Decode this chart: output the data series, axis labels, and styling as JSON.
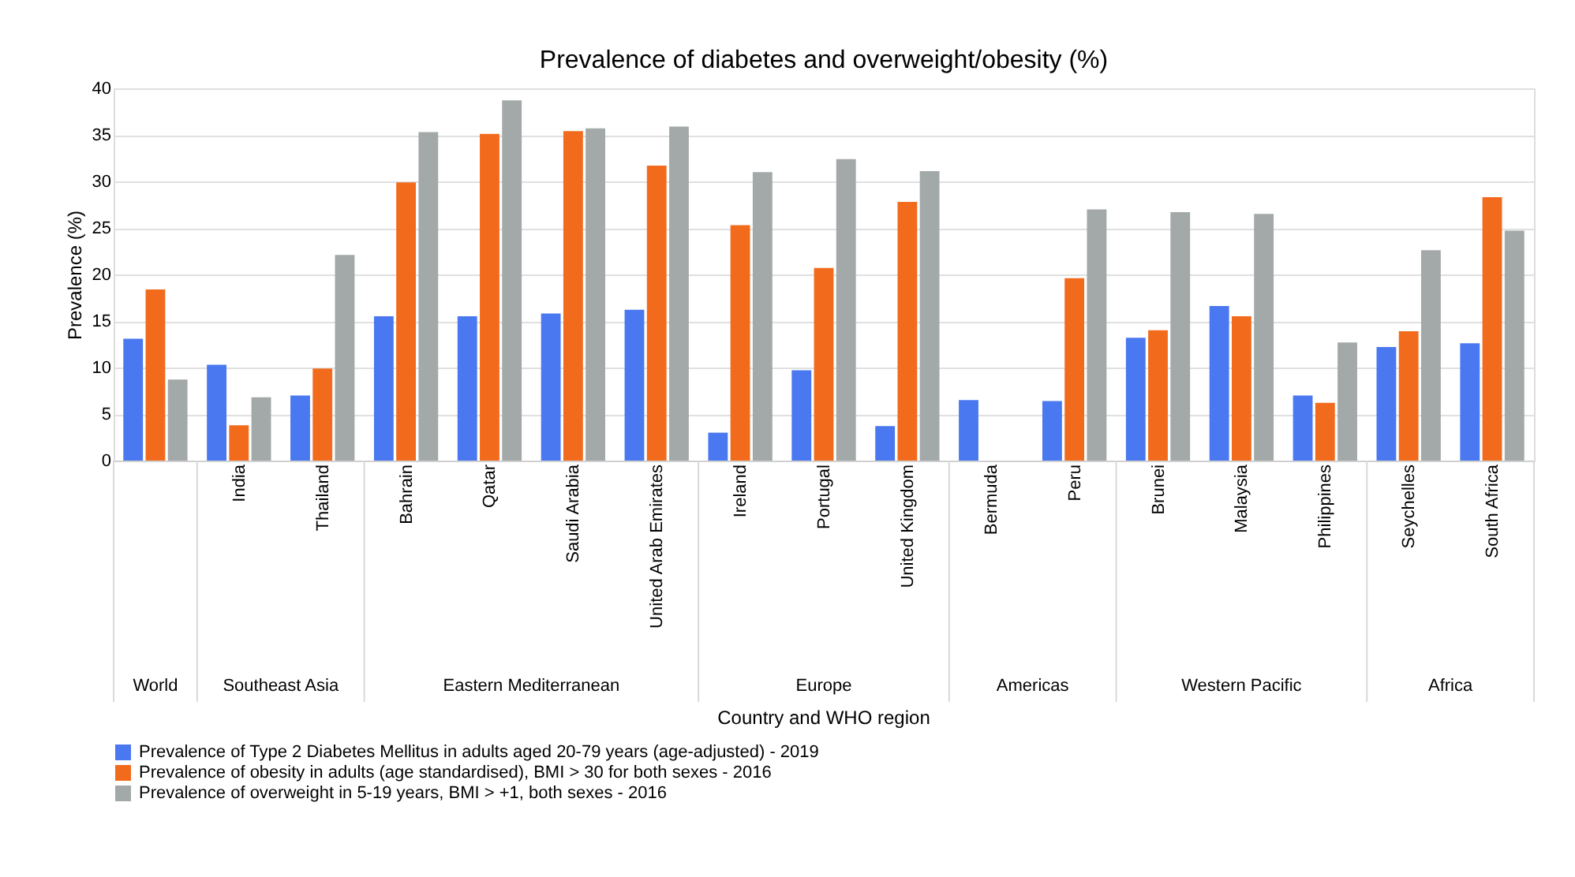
{
  "chart_data": {
    "type": "bar",
    "title": "Prevalence of diabetes and overweight/obesity (%)",
    "ylabel": "Prevalence (%)",
    "categories": [
      null,
      "India",
      "Thailand",
      "Bahrain",
      "Qatar",
      "Saudi Arabia",
      "United Arab Emirates",
      "Ireland",
      "Portugal",
      "United Kingdom",
      "Bermuda",
      "Peru",
      "Brunei",
      "Malaysia",
      "Philippines",
      "Seychelles",
      "South Africa"
    ],
    "series": [
      {
        "name": "Prevalence of Type 2 Diabetes Mellitus in adults aged 20-79 years (age-adjusted) - 2019",
        "color": "#4a78f0",
        "values": [
          13.1,
          10.3,
          7.0,
          15.5,
          15.5,
          15.8,
          16.2,
          3.0,
          9.7,
          3.7,
          6.5,
          6.4,
          13.2,
          16.6,
          7.0,
          12.2,
          12.6
        ]
      },
      {
        "name": "Prevalence of obesity in adults (age standardised), BMI > 30 for both sexes - 2016",
        "color": "#f26b1d",
        "values": [
          18.4,
          3.8,
          9.9,
          29.9,
          35.1,
          35.4,
          31.7,
          25.3,
          20.7,
          27.8,
          null,
          19.6,
          14.0,
          15.5,
          6.2,
          13.9,
          28.3
        ]
      },
      {
        "name": "Prevalence of overweight in 5-19 years, BMI > +1, both sexes - 2016",
        "color": "#a3a8a8",
        "values": [
          8.7,
          6.8,
          22.1,
          35.3,
          38.7,
          35.7,
          35.9,
          31.0,
          32.4,
          31.1,
          null,
          27.0,
          26.7,
          26.5,
          12.7,
          22.6,
          24.7
        ]
      }
    ],
    "annotations": [
      "World",
      "Southeast Asia",
      "Eastern Mediterranean",
      "Europe",
      "Americas",
      "Western Pacific",
      "Africa",
      "Country and WHO region"
    ],
    "ylim": [
      0,
      40
    ],
    "yticks": [
      0,
      5,
      10,
      15,
      20,
      25,
      30,
      35,
      40
    ],
    "grid": "y",
    "legend": "bottom"
  }
}
